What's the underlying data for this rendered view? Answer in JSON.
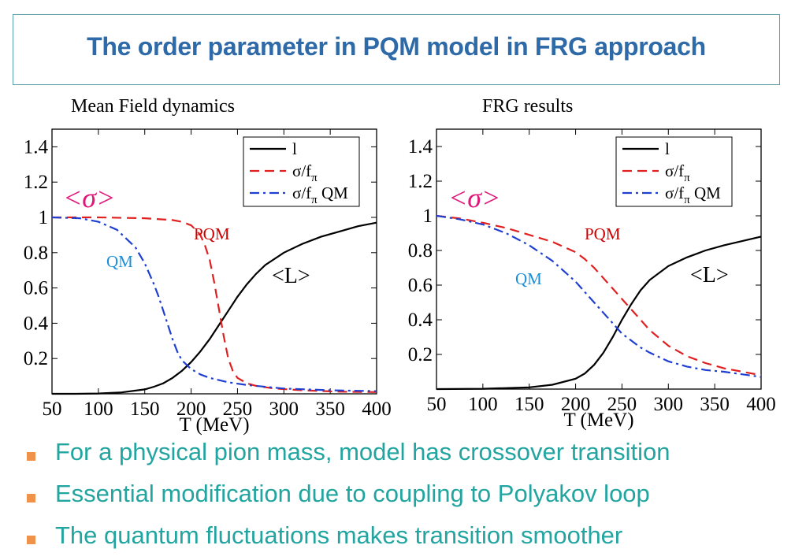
{
  "slide": {
    "title": "The order parameter in PQM model in FRG approach",
    "bullets": [
      "For a physical pion mass, model has crossover transition",
      "Essential modification due to coupling to Polyakov loop",
      "The quantum fluctuations makes transition  smoother"
    ],
    "colors": {
      "title": "#2e6aa8",
      "bullet_text": "#22a5a0",
      "bullet_marker": "#f0924a",
      "border": "#5aa0a8"
    }
  },
  "chart_data": [
    {
      "type": "line",
      "title": "Mean Field dynamics",
      "xlabel": "T (MeV)",
      "ylabel": "",
      "xlim": [
        50,
        400
      ],
      "ylim": [
        0,
        1.5
      ],
      "xticks": [
        "50",
        "100",
        "150",
        "200",
        "250",
        "300",
        "350",
        "400"
      ],
      "yticks": [
        "0.2",
        "0.4",
        "0.6",
        "0.8",
        "1",
        "1.2",
        "1.4"
      ],
      "legend_position": "top-right",
      "legend": [
        "l",
        "σ/f",
        "σ/f QM"
      ],
      "legend_subscript": "π",
      "annotations": {
        "sigma": "<σ>",
        "pqm": "PQM",
        "qm": "QM",
        "loop": "<L>"
      },
      "series": [
        {
          "name": "l",
          "color": "#000000",
          "style": "solid",
          "x": [
            50,
            75,
            100,
            125,
            150,
            160,
            170,
            180,
            190,
            200,
            210,
            220,
            230,
            240,
            250,
            260,
            270,
            280,
            300,
            320,
            340,
            360,
            380,
            400
          ],
          "y": [
            0.0,
            0.0,
            0.002,
            0.008,
            0.025,
            0.04,
            0.06,
            0.09,
            0.13,
            0.18,
            0.24,
            0.31,
            0.39,
            0.47,
            0.55,
            0.62,
            0.68,
            0.73,
            0.8,
            0.85,
            0.89,
            0.92,
            0.95,
            0.97
          ]
        },
        {
          "name": "σ/f",
          "color": "#e02020",
          "style": "dashed",
          "x": [
            50,
            100,
            150,
            180,
            190,
            200,
            205,
            210,
            215,
            220,
            225,
            230,
            235,
            240,
            245,
            250,
            260,
            270,
            290,
            320,
            360,
            400
          ],
          "y": [
            1.0,
            1.0,
            0.995,
            0.985,
            0.975,
            0.955,
            0.93,
            0.9,
            0.84,
            0.76,
            0.63,
            0.48,
            0.33,
            0.2,
            0.13,
            0.09,
            0.06,
            0.045,
            0.03,
            0.02,
            0.012,
            0.01
          ]
        },
        {
          "name": "σ/f QM",
          "color": "#1f3fd0",
          "style": "dashdot",
          "x": [
            50,
            80,
            100,
            120,
            140,
            150,
            160,
            165,
            170,
            175,
            180,
            185,
            190,
            200,
            210,
            220,
            240,
            260,
            300,
            350,
            400
          ],
          "y": [
            1.0,
            0.995,
            0.975,
            0.93,
            0.83,
            0.74,
            0.62,
            0.55,
            0.47,
            0.39,
            0.31,
            0.24,
            0.19,
            0.14,
            0.11,
            0.09,
            0.065,
            0.05,
            0.03,
            0.02,
            0.015
          ]
        }
      ]
    },
    {
      "type": "line",
      "title": "FRG results",
      "xlabel": "T (MeV)",
      "ylabel": "",
      "xlim": [
        50,
        400
      ],
      "ylim": [
        0,
        1.5
      ],
      "xticks": [
        "50",
        "100",
        "150",
        "200",
        "250",
        "300",
        "350",
        "400"
      ],
      "yticks": [
        "0.2",
        "0.4",
        "0.6",
        "0.8",
        "1",
        "1.2",
        "1.4"
      ],
      "legend_position": "top-right",
      "legend": [
        "l",
        "σ/f",
        "σ/f QM"
      ],
      "legend_subscript": "π",
      "annotations": {
        "sigma": "<σ>",
        "pqm": "PQM",
        "qm": "QM",
        "loop": "<L>"
      },
      "series": [
        {
          "name": "l",
          "color": "#000000",
          "style": "solid",
          "x": [
            50,
            100,
            150,
            175,
            200,
            210,
            220,
            230,
            240,
            250,
            260,
            270,
            280,
            300,
            320,
            340,
            360,
            380,
            400
          ],
          "y": [
            0.0,
            0.002,
            0.01,
            0.025,
            0.06,
            0.09,
            0.14,
            0.21,
            0.3,
            0.4,
            0.49,
            0.57,
            0.63,
            0.71,
            0.76,
            0.8,
            0.83,
            0.855,
            0.88
          ]
        },
        {
          "name": "σ/f",
          "color": "#e02020",
          "style": "dashed",
          "x": [
            50,
            75,
            100,
            125,
            150,
            175,
            200,
            210,
            220,
            230,
            240,
            250,
            260,
            270,
            280,
            300,
            320,
            340,
            360,
            380,
            400
          ],
          "y": [
            1.0,
            0.985,
            0.96,
            0.93,
            0.89,
            0.85,
            0.79,
            0.75,
            0.7,
            0.64,
            0.58,
            0.52,
            0.46,
            0.4,
            0.34,
            0.25,
            0.19,
            0.15,
            0.12,
            0.1,
            0.08
          ]
        },
        {
          "name": "σ/f QM",
          "color": "#1f3fd0",
          "style": "dashdot",
          "x": [
            50,
            75,
            100,
            125,
            150,
            175,
            200,
            210,
            220,
            230,
            240,
            250,
            260,
            270,
            280,
            300,
            320,
            340,
            360,
            380,
            400
          ],
          "y": [
            1.0,
            0.98,
            0.95,
            0.9,
            0.83,
            0.74,
            0.62,
            0.56,
            0.5,
            0.44,
            0.38,
            0.32,
            0.28,
            0.24,
            0.21,
            0.16,
            0.13,
            0.11,
            0.1,
            0.085,
            0.07
          ]
        }
      ]
    }
  ]
}
